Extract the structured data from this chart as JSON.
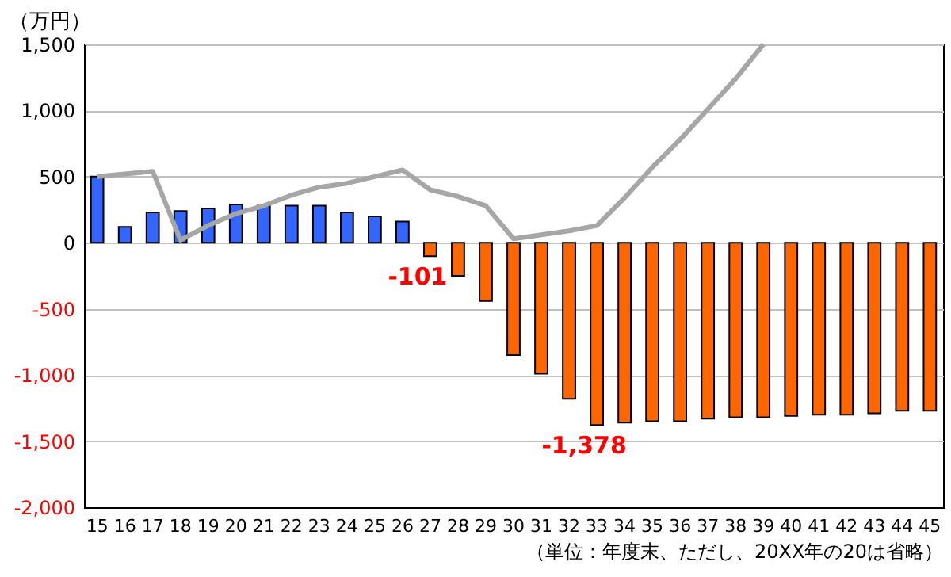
{
  "chart_data": {
    "type": "bar",
    "ylabel": "（万円）",
    "categories": [
      "15",
      "16",
      "17",
      "18",
      "19",
      "20",
      "21",
      "22",
      "23",
      "24",
      "25",
      "26",
      "27",
      "28",
      "29",
      "30",
      "31",
      "32",
      "33",
      "34",
      "35",
      "36",
      "37",
      "38",
      "39",
      "40",
      "41",
      "42",
      "43",
      "44",
      "45"
    ],
    "series": [
      {
        "colors": [
          "#3366ff",
          "#3366ff",
          "#3366ff",
          "#3366ff",
          "#3366ff",
          "#3366ff",
          "#3366ff",
          "#3366ff",
          "#3366ff",
          "#3366ff",
          "#3366ff",
          "#3366ff",
          "#ff6600",
          "#ff6600",
          "#ff6600",
          "#ff6600",
          "#ff6600",
          "#ff6600",
          "#ff6600",
          "#ff6600",
          "#ff6600",
          "#ff6600",
          "#ff6600",
          "#ff6600",
          "#ff6600",
          "#ff6600",
          "#ff6600",
          "#ff6600",
          "#ff6600",
          "#ff6600",
          "#ff6600"
        ],
        "values": [
          500,
          120,
          230,
          240,
          260,
          290,
          280,
          280,
          280,
          230,
          200,
          160,
          -101,
          -250,
          -440,
          -850,
          -990,
          -1180,
          -1378,
          -1360,
          -1350,
          -1350,
          -1330,
          -1320,
          -1320,
          -1310,
          -1300,
          -1300,
          -1290,
          -1270,
          -1270
        ],
        "value_labels": [
          null,
          null,
          null,
          null,
          null,
          null,
          null,
          null,
          null,
          null,
          null,
          null,
          "-101",
          null,
          null,
          null,
          null,
          null,
          "-1,378",
          null,
          null,
          null,
          null,
          null,
          null,
          null,
          null,
          null,
          null,
          null,
          null
        ]
      },
      {
        "type": "line",
        "color": "#a6a6a6",
        "values": [
          500,
          520,
          540,
          20,
          130,
          220,
          280,
          360,
          420,
          450,
          500,
          550,
          400,
          350,
          280,
          30,
          60,
          90,
          130,
          340,
          570,
          780,
          1010,
          1240,
          1500,
          null,
          null,
          null,
          null,
          null,
          null
        ]
      }
    ],
    "ylim": [
      -2000,
      1500
    ],
    "yticks": [
      {
        "value": -2000,
        "label": "-2,000"
      },
      {
        "value": -1500,
        "label": "-1,500"
      },
      {
        "value": -1000,
        "label": "-1,000"
      },
      -500,
      0,
      500,
      {
        "value": 1000,
        "label": "1,000"
      },
      {
        "value": 1500,
        "label": "1,500"
      }
    ],
    "grid": "y",
    "annotations": [
      "（単位：年度末、ただし、20XX年の20は省略）"
    ]
  }
}
